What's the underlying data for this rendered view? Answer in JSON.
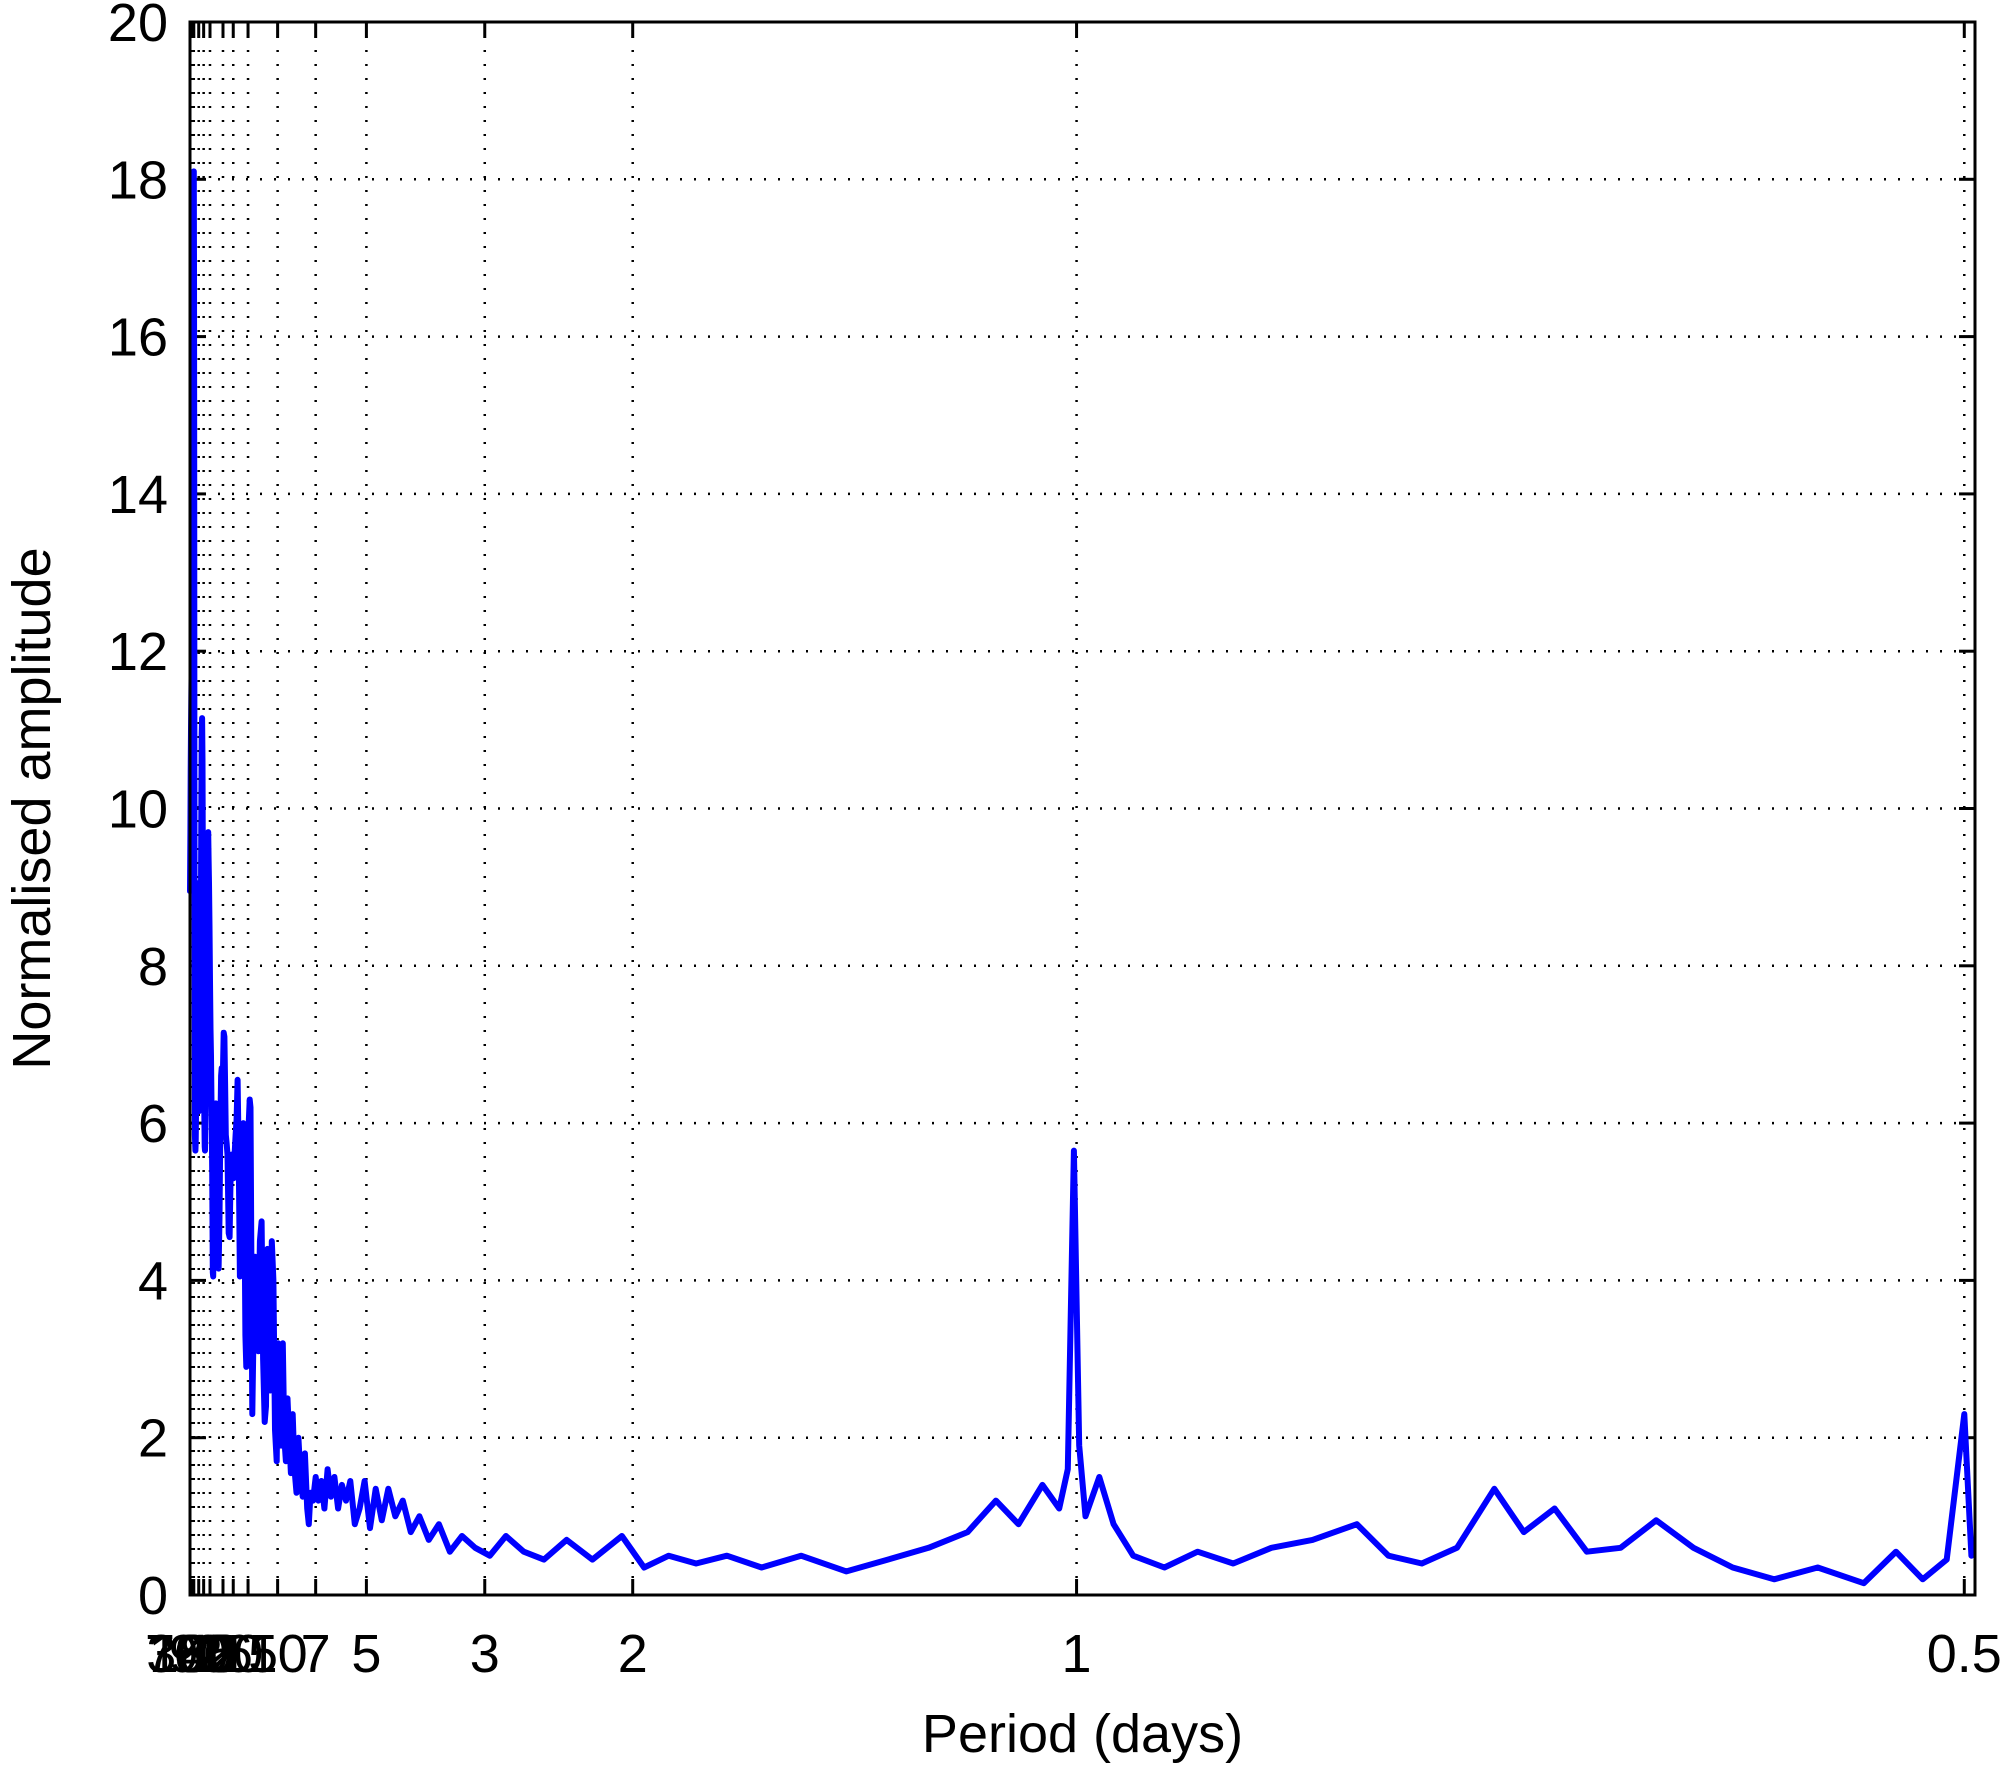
{
  "chart_data": {
    "type": "line",
    "title": "",
    "xlabel": "Period (days)",
    "ylabel": "Normalised amplitude",
    "x_scale": "reciprocal (frequency-linear)",
    "xlim_period": [
      775,
      0.497
    ],
    "ylim": [
      0,
      20
    ],
    "grid": true,
    "grid_style": "dotted",
    "line_color": "#0000ff",
    "x_ticks": [
      {
        "period": 730,
        "label": "730"
      },
      {
        "period": 365,
        "label": "365"
      },
      {
        "period": 180,
        "label": "180"
      },
      {
        "period": 90,
        "label": "90"
      },
      {
        "period": 60,
        "label": "60"
      },
      {
        "period": 42,
        "label": "42"
      },
      {
        "period": 26,
        "label": "26"
      },
      {
        "period": 20,
        "label": "20"
      },
      {
        "period": 15,
        "label": "15"
      },
      {
        "period": 10,
        "label": "10"
      },
      {
        "period": 7,
        "label": "7"
      },
      {
        "period": 5,
        "label": "5"
      },
      {
        "period": 3,
        "label": "3"
      },
      {
        "period": 2,
        "label": "2"
      },
      {
        "period": 1,
        "label": "1"
      },
      {
        "period": 0.5,
        "label": "0.5"
      }
    ],
    "y_ticks": [
      {
        "value": 0,
        "label": "0"
      },
      {
        "value": 2,
        "label": "2"
      },
      {
        "value": 4,
        "label": "4"
      },
      {
        "value": 6,
        "label": "6"
      },
      {
        "value": 8,
        "label": "8"
      },
      {
        "value": 10,
        "label": "10"
      },
      {
        "value": 12,
        "label": "12"
      },
      {
        "value": 14,
        "label": "14"
      },
      {
        "value": 16,
        "label": "16"
      },
      {
        "value": 18,
        "label": "18"
      },
      {
        "value": 20,
        "label": "20"
      }
    ],
    "series": [
      {
        "points": [
          [
            775,
            8.95
          ],
          [
            584,
            9.7
          ],
          [
            486,
            10.5
          ],
          [
            416,
            11.0
          ],
          [
            365,
            11.4
          ],
          [
            311,
            11.9
          ],
          [
            273,
            11.65
          ],
          [
            247,
            11.85
          ],
          [
            215,
            12.9
          ],
          [
            196,
            15.5
          ],
          [
            186,
            17.1
          ],
          [
            180,
            18.1
          ],
          [
            172,
            16.9
          ],
          [
            165,
            14.5
          ],
          [
            159,
            10.5
          ],
          [
            152,
            7.5
          ],
          [
            146,
            5.85
          ],
          [
            136,
            5.65
          ],
          [
            130,
            5.75
          ],
          [
            125,
            6.1
          ],
          [
            117,
            7.5
          ],
          [
            109,
            8.6
          ],
          [
            106,
            9.05
          ],
          [
            102,
            9.05
          ],
          [
            98,
            8.3
          ],
          [
            94,
            6.6
          ],
          [
            91,
            6.2
          ],
          [
            89,
            6.15
          ],
          [
            86,
            6.35
          ],
          [
            83,
            6.45
          ],
          [
            80,
            6.65
          ],
          [
            78,
            7.1
          ],
          [
            74,
            8.6
          ],
          [
            71,
            10.2
          ],
          [
            69,
            10.95
          ],
          [
            67,
            11.15
          ],
          [
            65,
            10.6
          ],
          [
            63,
            9.1
          ],
          [
            61,
            7.7
          ],
          [
            59,
            6.6
          ],
          [
            56,
            5.7
          ],
          [
            55,
            5.65
          ],
          [
            53,
            6.3
          ],
          [
            51,
            7.3
          ],
          [
            50,
            8.3
          ],
          [
            48,
            9.45
          ],
          [
            46,
            9.7
          ],
          [
            45,
            9.35
          ],
          [
            44,
            9.05
          ],
          [
            43,
            8.5
          ],
          [
            42,
            7.8
          ],
          [
            41,
            7.2
          ],
          [
            40,
            6.85
          ],
          [
            38,
            5.4
          ],
          [
            37,
            4.1
          ],
          [
            36.5,
            4.05
          ],
          [
            35,
            5.2
          ],
          [
            34,
            5.95
          ],
          [
            33,
            6.25
          ],
          [
            32.3,
            6.0
          ],
          [
            31.5,
            5.2
          ],
          [
            30.5,
            4.5
          ],
          [
            29.8,
            4.15
          ],
          [
            29,
            4.8
          ],
          [
            28.2,
            5.9
          ],
          [
            27.5,
            6.6
          ],
          [
            27,
            6.7
          ],
          [
            26.5,
            6.55
          ],
          [
            26,
            6.7
          ],
          [
            25.5,
            7.15
          ],
          [
            25,
            7.1
          ],
          [
            24.5,
            6.5
          ],
          [
            24,
            5.85
          ],
          [
            23.5,
            5.75
          ],
          [
            23,
            5.6
          ],
          [
            22.3,
            4.6
          ],
          [
            21.8,
            4.55
          ],
          [
            21.3,
            5.25
          ],
          [
            20.8,
            5.6
          ],
          [
            20.3,
            5.5
          ],
          [
            19.8,
            5.3
          ],
          [
            19.4,
            5.6
          ],
          [
            19,
            5.85
          ],
          [
            18.6,
            6.05
          ],
          [
            18.2,
            6.55
          ],
          [
            17.8,
            5.6
          ],
          [
            17.4,
            4.05
          ],
          [
            17.0,
            4.5
          ],
          [
            16.6,
            5.3
          ],
          [
            16.3,
            6.0
          ],
          [
            16.0,
            5.2
          ],
          [
            15.7,
            3.3
          ],
          [
            15.45,
            2.9
          ],
          [
            15.2,
            4.0
          ],
          [
            14.9,
            5.9
          ],
          [
            14.6,
            6.3
          ],
          [
            14.4,
            6.2
          ],
          [
            14.2,
            4.2
          ],
          [
            14.0,
            2.3
          ],
          [
            13.7,
            3.5
          ],
          [
            13.4,
            4.3
          ],
          [
            13.1,
            4.0
          ],
          [
            12.8,
            3.1
          ],
          [
            12.5,
            4.5
          ],
          [
            12.2,
            4.75
          ],
          [
            11.95,
            3.0
          ],
          [
            11.7,
            2.2
          ],
          [
            11.5,
            2.4
          ],
          [
            11.3,
            4.4
          ],
          [
            11.1,
            3.2
          ],
          [
            10.9,
            2.6
          ],
          [
            10.7,
            4.5
          ],
          [
            10.5,
            4.0
          ],
          [
            10.3,
            2.1
          ],
          [
            10.1,
            1.7
          ],
          [
            9.95,
            3.2
          ],
          [
            9.8,
            2.4
          ],
          [
            9.6,
            1.9
          ],
          [
            9.45,
            3.2
          ],
          [
            9.3,
            2.0
          ],
          [
            9.15,
            1.7
          ],
          [
            9.0,
            2.5
          ],
          [
            8.85,
            2.0
          ],
          [
            8.7,
            1.55
          ],
          [
            8.55,
            2.3
          ],
          [
            8.4,
            1.6
          ],
          [
            8.25,
            1.3
          ],
          [
            8.1,
            2.0
          ],
          [
            7.95,
            1.5
          ],
          [
            7.8,
            1.25
          ],
          [
            7.65,
            1.8
          ],
          [
            7.5,
            1.1
          ],
          [
            7.4,
            0.9
          ],
          [
            7.3,
            1.3
          ],
          [
            7.15,
            1.2
          ],
          [
            7.0,
            1.5
          ],
          [
            6.85,
            1.2
          ],
          [
            6.7,
            1.45
          ],
          [
            6.55,
            1.1
          ],
          [
            6.4,
            1.6
          ],
          [
            6.25,
            1.25
          ],
          [
            6.1,
            1.5
          ],
          [
            5.95,
            1.1
          ],
          [
            5.8,
            1.4
          ],
          [
            5.65,
            1.2
          ],
          [
            5.5,
            1.45
          ],
          [
            5.35,
            0.9
          ],
          [
            5.2,
            1.1
          ],
          [
            5.05,
            1.45
          ],
          [
            4.9,
            0.85
          ],
          [
            4.75,
            1.35
          ],
          [
            4.6,
            0.95
          ],
          [
            4.45,
            1.35
          ],
          [
            4.3,
            1.0
          ],
          [
            4.15,
            1.2
          ],
          [
            4.0,
            0.8
          ],
          [
            3.85,
            1.0
          ],
          [
            3.7,
            0.7
          ],
          [
            3.55,
            0.9
          ],
          [
            3.4,
            0.55
          ],
          [
            3.25,
            0.75
          ],
          [
            3.1,
            0.6
          ],
          [
            2.95,
            0.5
          ],
          [
            2.8,
            0.75
          ],
          [
            2.65,
            0.55
          ],
          [
            2.5,
            0.45
          ],
          [
            2.35,
            0.7
          ],
          [
            2.2,
            0.45
          ],
          [
            2.05,
            0.75
          ],
          [
            1.95,
            0.35
          ],
          [
            1.85,
            0.5
          ],
          [
            1.75,
            0.4
          ],
          [
            1.65,
            0.5
          ],
          [
            1.55,
            0.35
          ],
          [
            1.45,
            0.5
          ],
          [
            1.35,
            0.3
          ],
          [
            1.27,
            0.45
          ],
          [
            1.2,
            0.6
          ],
          [
            1.14,
            0.8
          ],
          [
            1.1,
            1.2
          ],
          [
            1.07,
            0.9
          ],
          [
            1.04,
            1.4
          ],
          [
            1.02,
            1.1
          ],
          [
            1.01,
            1.6
          ],
          [
            1.003,
            5.65
          ],
          [
            0.997,
            1.9
          ],
          [
            0.99,
            1.0
          ],
          [
            0.975,
            1.5
          ],
          [
            0.96,
            0.9
          ],
          [
            0.94,
            0.5
          ],
          [
            0.91,
            0.35
          ],
          [
            0.88,
            0.55
          ],
          [
            0.85,
            0.4
          ],
          [
            0.82,
            0.6
          ],
          [
            0.79,
            0.7
          ],
          [
            0.76,
            0.9
          ],
          [
            0.74,
            0.5
          ],
          [
            0.72,
            0.4
          ],
          [
            0.7,
            0.6
          ],
          [
            0.68,
            1.35
          ],
          [
            0.665,
            0.8
          ],
          [
            0.65,
            1.1
          ],
          [
            0.635,
            0.55
          ],
          [
            0.62,
            0.6
          ],
          [
            0.605,
            0.95
          ],
          [
            0.59,
            0.6
          ],
          [
            0.575,
            0.35
          ],
          [
            0.56,
            0.2
          ],
          [
            0.545,
            0.35
          ],
          [
            0.53,
            0.15
          ],
          [
            0.52,
            0.55
          ],
          [
            0.512,
            0.2
          ],
          [
            0.505,
            0.45
          ],
          [
            0.5,
            2.3
          ],
          [
            0.498,
            0.5
          ]
        ]
      }
    ]
  }
}
